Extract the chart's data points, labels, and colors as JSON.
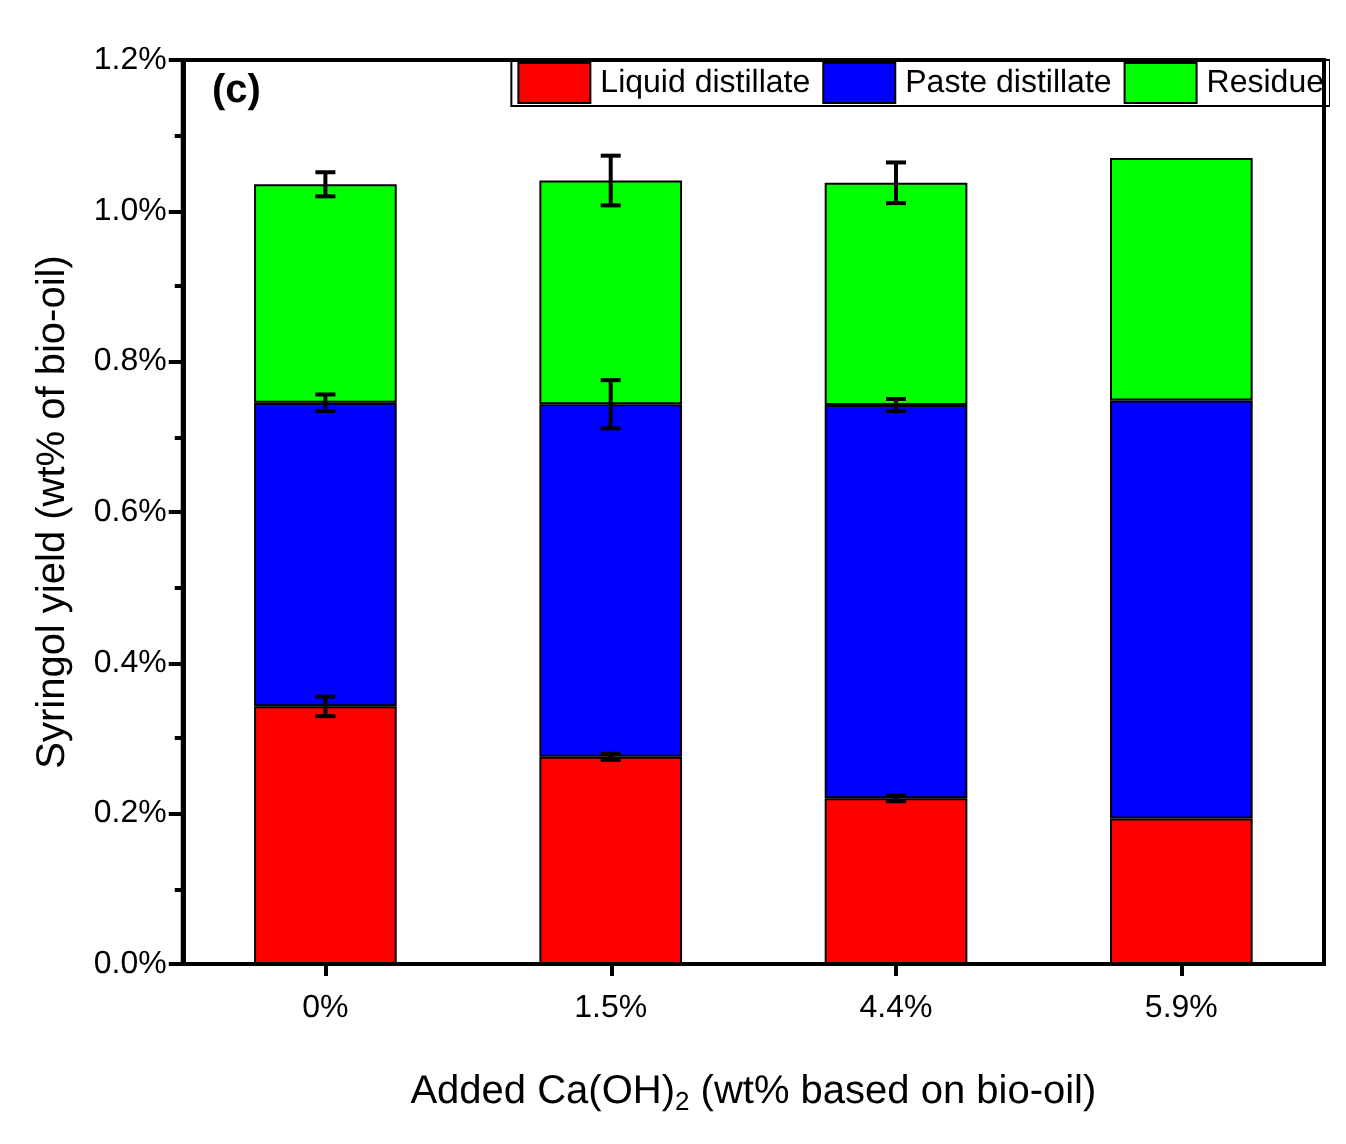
{
  "chart_data": {
    "type": "bar",
    "stacked": true,
    "ylabel": "Syringol yield (wt% of bio-oil)",
    "xlabel": "Added Ca(OH)$_{2}$ (wt% based on bio-oil)",
    "annotations": [
      "(c)"
    ],
    "categories": [
      "0%",
      "1.5%",
      "4.4%",
      "5.9%"
    ],
    "series": [
      {
        "name": "Liquid distillate",
        "color": "#ff0000",
        "values": [
          0.342,
          0.275,
          0.22,
          0.193
        ],
        "errors": [
          0.013,
          0.004,
          0.004,
          null
        ]
      },
      {
        "name": "Paste distillate",
        "color": "#0000ff",
        "values": [
          0.403,
          0.468,
          0.522,
          0.555
        ],
        "errors": [
          0.011,
          0.032,
          0.008,
          null
        ]
      },
      {
        "name": "Residue",
        "color": "#00ff00",
        "values": [
          0.29,
          0.297,
          0.295,
          0.322
        ],
        "errors": [
          0.016,
          0.033,
          0.027,
          null
        ]
      }
    ],
    "ylim": [
      0,
      1.2
    ],
    "yticks": [
      {
        "value": 0,
        "label": "0.0%"
      },
      {
        "value": 0.2,
        "label": "0.2%"
      },
      {
        "value": 0.4,
        "label": "0.4%"
      },
      {
        "value": 0.6,
        "label": "0.6%"
      },
      {
        "value": 0.8,
        "label": "0.8%"
      },
      {
        "value": 1.0,
        "label": "1.0%"
      },
      {
        "value": 1.2,
        "label": "1.2%"
      }
    ],
    "grid": false,
    "legend": "top right"
  }
}
